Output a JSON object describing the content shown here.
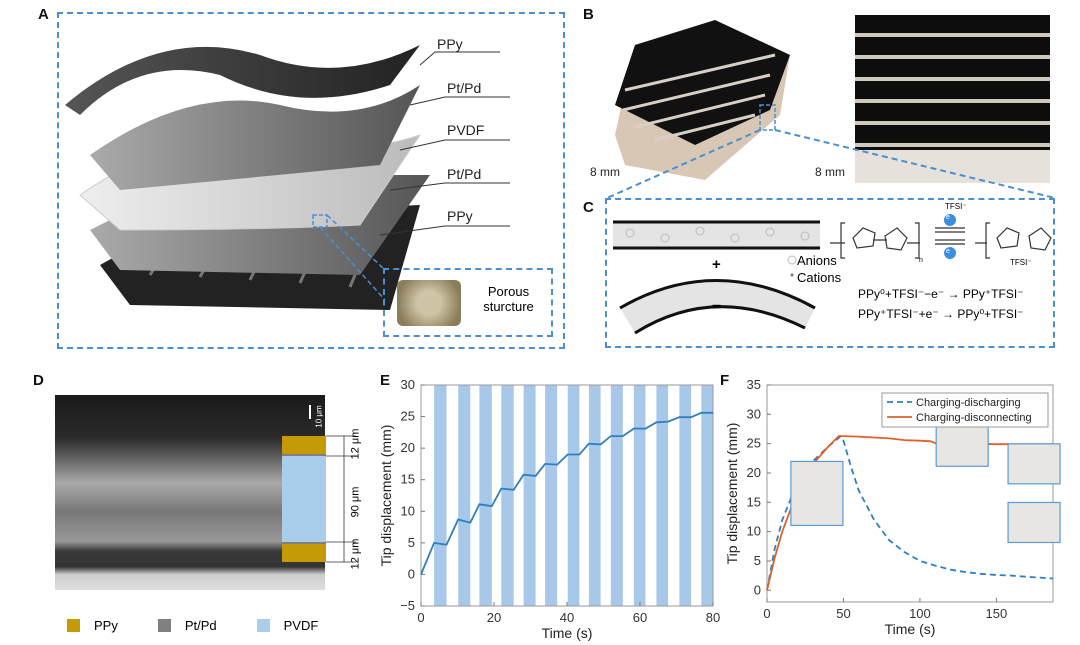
{
  "panels": {
    "a": "A",
    "b": "B",
    "c": "C",
    "d": "D",
    "e": "E",
    "f": "F"
  },
  "panel_a": {
    "layers": [
      "PPy",
      "Pt/Pd",
      "PVDF",
      "Pt/Pd",
      "PPy"
    ],
    "inset_label": "Porous sturcture"
  },
  "panel_b": {
    "scale_left": "8 mm",
    "scale_right": "8 mm"
  },
  "panel_c": {
    "legend_anions": "Anions",
    "legend_cations": "Cations",
    "plus": "+",
    "minus": "−",
    "eq1": "PPy⁰+TFSI⁻−e⁻ → PPy⁺TFSI⁻",
    "eq2": "PPy⁺TFSI⁻+e⁻ → PPy⁰+TFSI⁻",
    "tfsi": "TFSI⁻",
    "nh": "N",
    "h": "H",
    "n_sub": "n",
    "electron": "e"
  },
  "panel_d": {
    "scale": "10 μm",
    "dims": [
      "12 μm",
      "90 μm",
      "12 μm"
    ],
    "legend": [
      {
        "label": "PPy",
        "color": "#c49a06"
      },
      {
        "label": "Pt/Pd",
        "color": "#808080"
      },
      {
        "label": "PVDF",
        "color": "#a9cdea"
      }
    ]
  },
  "chart_data": [
    {
      "type": "line",
      "panel": "E",
      "xlabel": "Time (s)",
      "ylabel": "Tip displacement (mm)",
      "xlim": [
        0,
        80
      ],
      "ylim": [
        -5,
        30
      ],
      "xticks": [
        0,
        20,
        40,
        60,
        80
      ],
      "yticks": [
        -5,
        0,
        5,
        10,
        15,
        20,
        25,
        30
      ],
      "shaded_intervals": [
        [
          3.6,
          7.0
        ],
        [
          10.2,
          13.5
        ],
        [
          16,
          19.4
        ],
        [
          22,
          25.4
        ],
        [
          28.1,
          31.4
        ],
        [
          34,
          37.3
        ],
        [
          40.2,
          43.4
        ],
        [
          46,
          49.2
        ],
        [
          52,
          55.3
        ],
        [
          58.3,
          61.5
        ],
        [
          64.5,
          67.7
        ],
        [
          70.8,
          74
        ],
        [
          76.8,
          80
        ]
      ],
      "series": [
        {
          "name": "Tip displacement",
          "color": "#2f7fc0",
          "x": [
            0,
            3.6,
            7.0,
            10.2,
            13.5,
            16,
            19.4,
            22,
            25.4,
            28.1,
            31.4,
            34,
            37.3,
            40.2,
            43.4,
            46,
            49.2,
            52,
            55.3,
            58.3,
            61.5,
            64.5,
            67.7,
            70.8,
            74,
            76.8,
            80
          ],
          "y": [
            0,
            5,
            4.7,
            8.7,
            8.2,
            11.1,
            10.8,
            13.6,
            13.4,
            15.8,
            15.6,
            17.5,
            17.4,
            19,
            19,
            20.7,
            20.6,
            21.9,
            21.9,
            23.1,
            23.1,
            24.1,
            24.2,
            24.9,
            24.9,
            25.6,
            25.6
          ]
        }
      ]
    },
    {
      "type": "line",
      "panel": "F",
      "xlabel": "Time (s)",
      "ylabel": "Tip displacement (mm)",
      "xlim": [
        0,
        187
      ],
      "ylim": [
        -2,
        35
      ],
      "xticks": [
        0,
        50,
        100,
        150
      ],
      "yticks": [
        0,
        5,
        10,
        15,
        20,
        25,
        30,
        35
      ],
      "legend_position": "top-right",
      "series": [
        {
          "name": "Charging-discharging",
          "color": "#2f7fc0",
          "style": "dashed",
          "x": [
            0,
            5,
            10,
            20,
            30,
            40,
            48,
            50,
            55,
            60,
            70,
            80,
            90,
            100,
            110,
            120,
            130,
            140,
            150,
            160,
            170,
            187
          ],
          "y": [
            0,
            7,
            12,
            18.5,
            22,
            24.5,
            26.2,
            25.5,
            21,
            17,
            12,
            8.5,
            6.5,
            5,
            4.2,
            3.5,
            3.1,
            2.8,
            2.6,
            2.5,
            2.3,
            2
          ]
        },
        {
          "name": "Charging-disconnecting",
          "color": "#e0602a",
          "style": "solid",
          "x": [
            0,
            5,
            10,
            20,
            30,
            40,
            47,
            60,
            80,
            90,
            100,
            107,
            110,
            120,
            125,
            130,
            150,
            187
          ],
          "y": [
            0,
            5.5,
            10,
            17,
            21.5,
            24.5,
            26.3,
            26.2,
            25.9,
            25.6,
            25.5,
            25.4,
            25.1,
            25.3,
            24.9,
            25,
            24.9,
            24.9
          ]
        }
      ]
    }
  ]
}
